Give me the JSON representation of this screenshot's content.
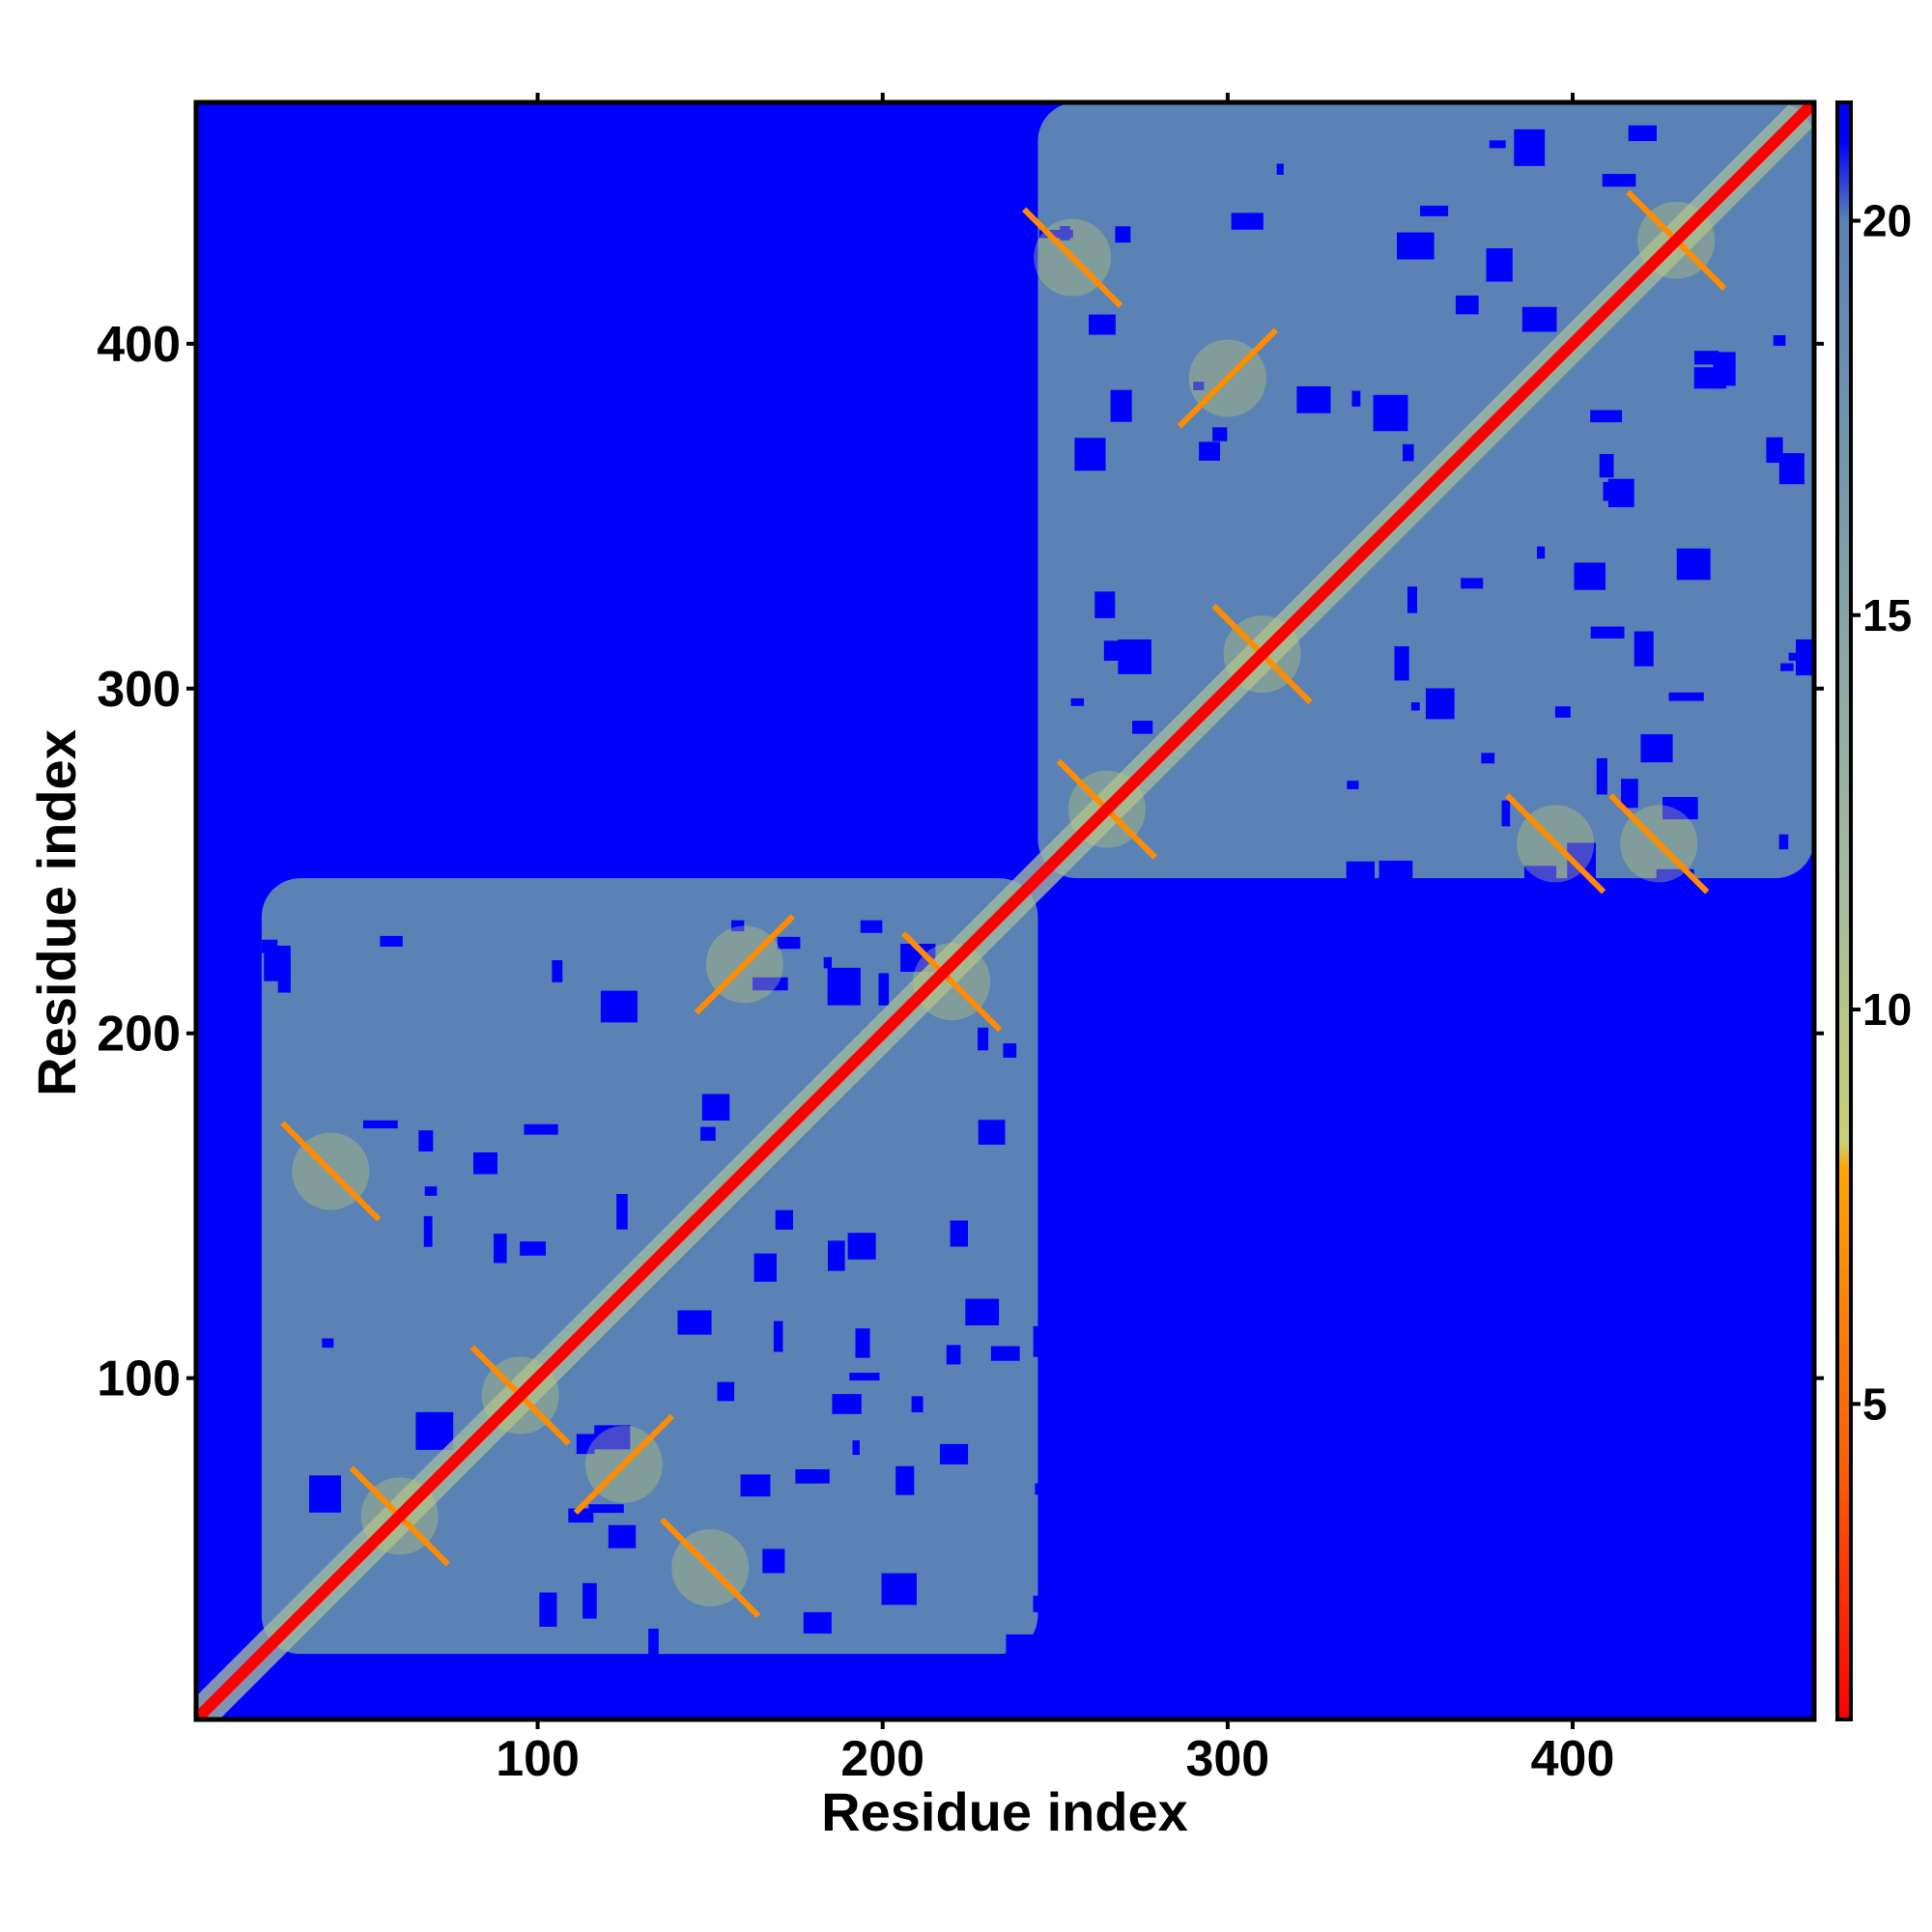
{
  "chart_data": {
    "type": "heatmap",
    "title": "",
    "xlabel": "Residue index",
    "ylabel": "Residue index",
    "n_residues": 470,
    "xlim": [
      1,
      470
    ],
    "ylim": [
      1,
      470
    ],
    "x_ticks": [
      100,
      200,
      300,
      400
    ],
    "y_ticks": [
      100,
      200,
      300,
      400
    ],
    "colorbar": {
      "range": [
        1,
        21.5
      ],
      "ticks": [
        5,
        10,
        15,
        20
      ],
      "stops": [
        {
          "value": 1,
          "color": "#ff0000"
        },
        {
          "value": 4,
          "color": "#ff5a00"
        },
        {
          "value": 8,
          "color": "#ffa500"
        },
        {
          "value": 8.3,
          "color": "#c8d070"
        },
        {
          "value": 12,
          "color": "#a0b8a0"
        },
        {
          "value": 20,
          "color": "#5a82b4"
        },
        {
          "value": 21,
          "color": "#0000ff"
        }
      ]
    },
    "background_color": "#0000ff",
    "contact_region_color": "#5a82b4",
    "diagonal_color": "#ff0000",
    "domains": [
      {
        "start": 20,
        "end": 245
      },
      {
        "start": 245,
        "end": 470
      }
    ],
    "secondary_contacts": [
      {
        "center": [
          60,
          60
        ],
        "kind": "antiparallel"
      },
      {
        "center": [
          95,
          95
        ],
        "kind": "antiparallel"
      },
      {
        "center": [
          125,
          75
        ],
        "kind": "parallel"
      },
      {
        "center": [
          150,
          45
        ],
        "kind": "antiparallel"
      },
      {
        "center": [
          40,
          160
        ],
        "kind": "antiparallel"
      },
      {
        "center": [
          220,
          215
        ],
        "kind": "antiparallel"
      },
      {
        "center": [
          160,
          220
        ],
        "kind": "parallel"
      },
      {
        "center": [
          265,
          265
        ],
        "kind": "antiparallel"
      },
      {
        "center": [
          310,
          310
        ],
        "kind": "antiparallel"
      },
      {
        "center": [
          395,
          255
        ],
        "kind": "antiparallel"
      },
      {
        "center": [
          425,
          255
        ],
        "kind": "antiparallel"
      },
      {
        "center": [
          430,
          430
        ],
        "kind": "antiparallel"
      },
      {
        "center": [
          255,
          425
        ],
        "kind": "antiparallel"
      },
      {
        "center": [
          300,
          390
        ],
        "kind": "parallel"
      }
    ]
  }
}
